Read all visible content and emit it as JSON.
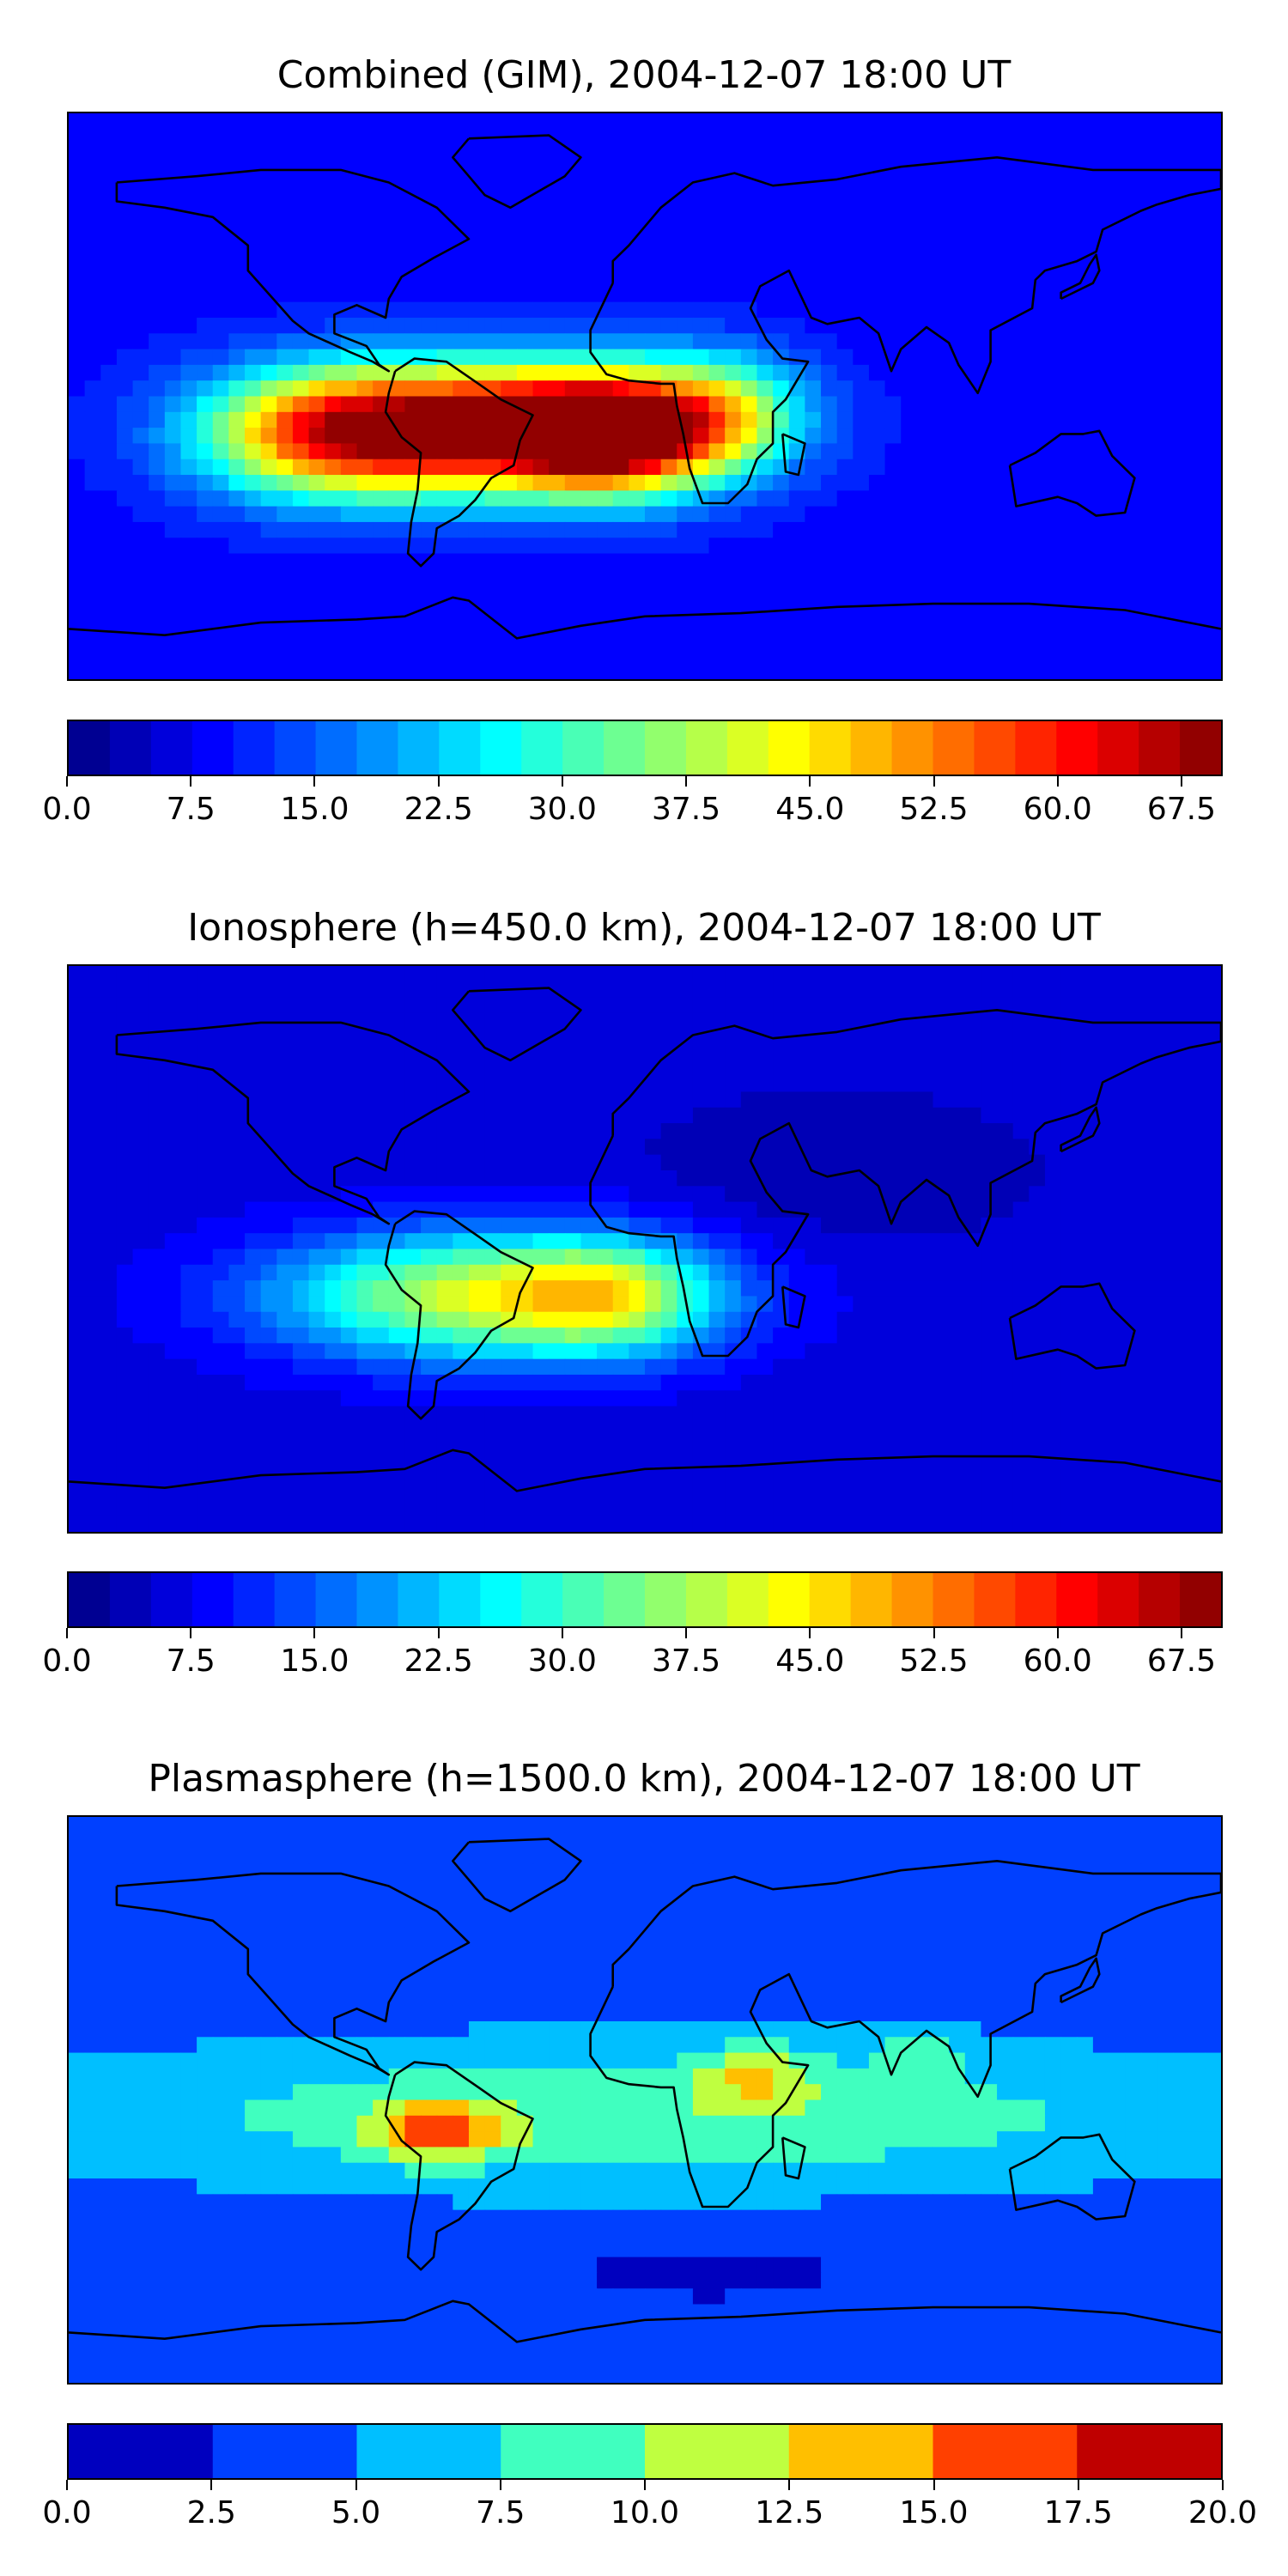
{
  "chart_data": [
    {
      "type": "heatmap",
      "title": "Combined (GIM), 2004-12-07 18:00 UT",
      "colormap": "jet",
      "vmin": 0.0,
      "vmax": 70.0,
      "colorbar_ticks": [
        0.0,
        7.5,
        15.0,
        22.5,
        30.0,
        37.5,
        45.0,
        52.5,
        60.0,
        67.5
      ],
      "colorbar_tick_labels": [
        "0.0",
        "7.5",
        "15.0",
        "22.5",
        "30.0",
        "37.5",
        "45.0",
        "52.5",
        "60.0",
        "67.5"
      ],
      "levels": 28,
      "base_value": 9,
      "features": [
        {
          "lon": -45,
          "lat": -10,
          "value": 58,
          "sigma_lon": 60,
          "sigma_lat": 20
        },
        {
          "lon": -10,
          "lat": -12,
          "value": 44,
          "sigma_lon": 30,
          "sigma_lat": 18
        },
        {
          "lon": -100,
          "lat": -12,
          "value": 35,
          "sigma_lon": 40,
          "sigma_lat": 20
        },
        {
          "lon": 25,
          "lat": -5,
          "value": 22,
          "sigma_lon": 25,
          "sigma_lat": 18
        }
      ]
    },
    {
      "type": "heatmap",
      "title": "Ionosphere  (h=450.0 km), 2004-12-07 18:00 UT",
      "colormap": "jet",
      "vmin": 0.0,
      "vmax": 70.0,
      "colorbar_ticks": [
        0.0,
        7.5,
        15.0,
        22.5,
        30.0,
        37.5,
        45.0,
        52.5,
        60.0,
        67.5
      ],
      "colorbar_tick_labels": [
        "0.0",
        "7.5",
        "15.0",
        "22.5",
        "30.0",
        "37.5",
        "45.0",
        "52.5",
        "60.0",
        "67.5"
      ],
      "levels": 28,
      "base_value": 6,
      "features": [
        {
          "lon": -50,
          "lat": -15,
          "value": 35,
          "sigma_lon": 65,
          "sigma_lat": 20
        },
        {
          "lon": -10,
          "lat": -15,
          "value": 18,
          "sigma_lon": 30,
          "sigma_lat": 18
        },
        {
          "lon": 60,
          "lat": 25,
          "value": -3,
          "sigma_lon": 60,
          "sigma_lat": 25
        }
      ]
    },
    {
      "type": "heatmap",
      "title": "Plasmasphere (h=1500.0 km), 2004-12-07 18:00 UT",
      "colormap": "jet",
      "vmin": 0.0,
      "vmax": 20.0,
      "colorbar_ticks": [
        0.0,
        2.5,
        5.0,
        7.5,
        10.0,
        12.5,
        15.0,
        17.5,
        20.0
      ],
      "colorbar_tick_labels": [
        "0.0",
        "2.5",
        "5.0",
        "7.5",
        "10.0",
        "12.5",
        "15.0",
        "17.5",
        "20.0"
      ],
      "levels": 8,
      "base_value": 3.5,
      "features": [
        {
          "lon": 0,
          "lat": -5,
          "value": 6,
          "sigma_lon": 200,
          "sigma_lat": 24
        },
        {
          "lon": -65,
          "lat": -10,
          "value": 9,
          "sigma_lon": 20,
          "sigma_lat": 9
        },
        {
          "lon": 35,
          "lat": 8,
          "value": 5.5,
          "sigma_lon": 18,
          "sigma_lat": 10
        },
        {
          "lon": 85,
          "lat": 15,
          "value": 3,
          "sigma_lon": 14,
          "sigma_lat": 8
        },
        {
          "lon": 20,
          "lat": -55,
          "value": -2.5,
          "sigma_lon": 40,
          "sigma_lat": 8
        }
      ]
    }
  ]
}
